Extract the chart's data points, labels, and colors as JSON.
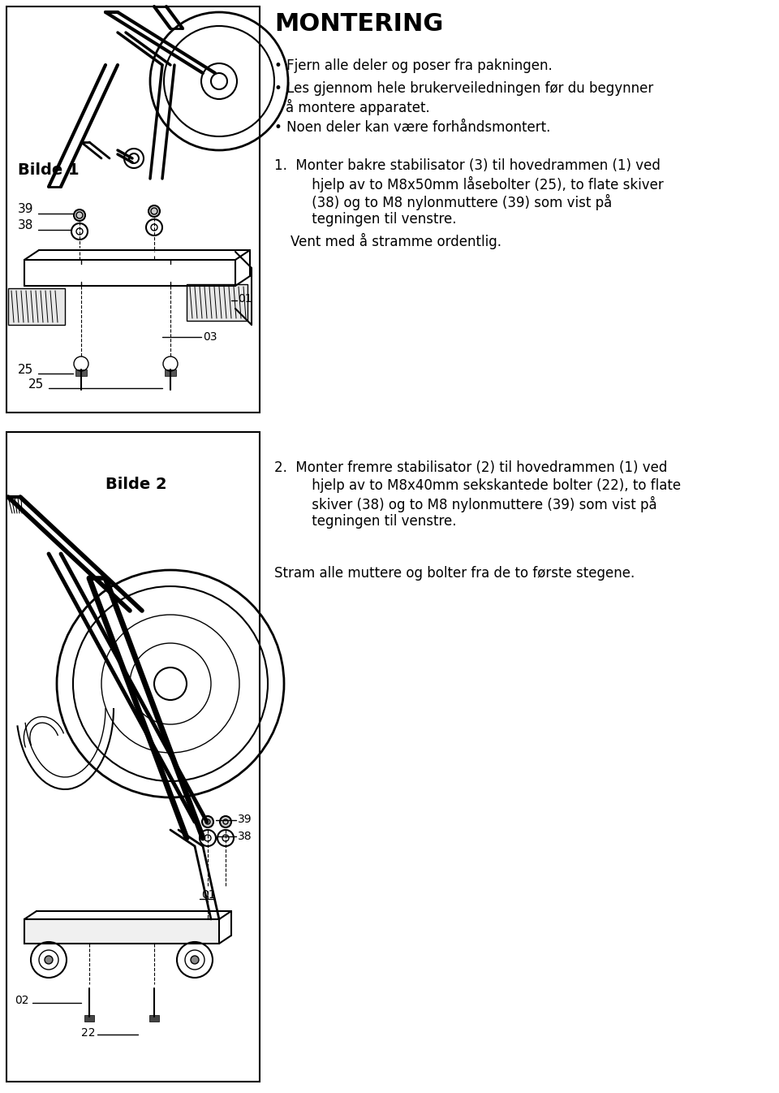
{
  "title": "MONTERING",
  "bg_color": "#ffffff",
  "text_color": "#000000",
  "border_color": "#000000",
  "bullet1": "Fjern alle deler og poser fra pakningen.",
  "bullet2a": "Les gjennom hele brukerveiledningen før du begynner",
  "bullet2b": "å montere apparatet.",
  "bullet3": "Noen deler kan være forhåndsmontert.",
  "step1_line1": "1.  Monter bakre stabilisator (3) til hovedrammen (1) ved",
  "step1_line2": "     hjelp av to M8x50mm låsebolter (25), to flate skiver",
  "step1_line3": "     (38) og to M8 nylonmuttere (39) som vist på",
  "step1_line4": "     tegningen til venstre.",
  "step1_sub": "     Vent med å stramme ordentlig.",
  "step2_line1": "2.  Monter fremre stabilisator (2) til hovedrammen (1) ved",
  "step2_line2": "     hjelp av to M8x40mm sekskantede bolter (22), to flate",
  "step2_line3": "     skiver (38) og to M8 nylonmuttere (39) som vist på",
  "step2_line4": "     tegningen til venstre.",
  "step2_sub": "Stram alle muttere og bolter fra de to første stegene.",
  "bilde1_label": "Bilde 1",
  "bilde2_label": "Bilde 2",
  "fig_width": 9.6,
  "fig_height": 13.46,
  "dpi": 100
}
